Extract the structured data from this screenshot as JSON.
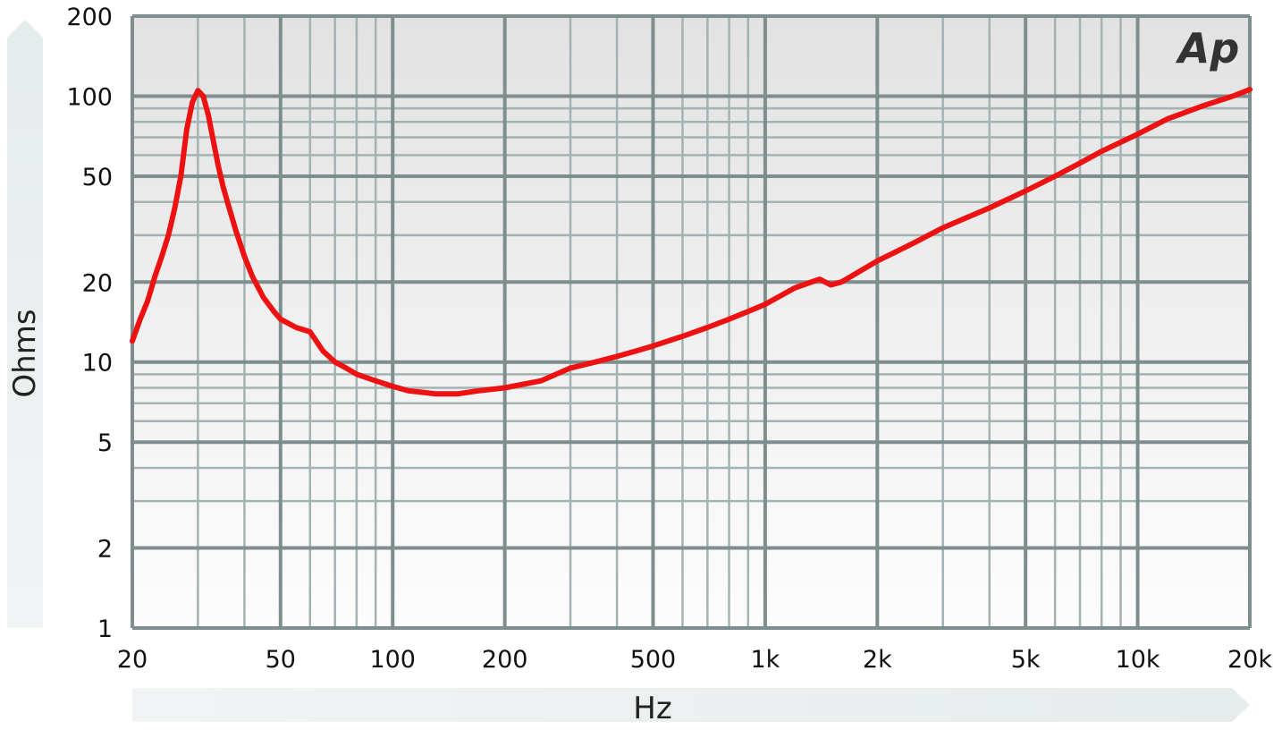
{
  "chart_data": {
    "type": "line",
    "title": "",
    "xlabel": "Hz",
    "ylabel": "Ohms",
    "x_scale": "log",
    "y_scale": "log",
    "xlim": [
      20,
      20000
    ],
    "ylim": [
      1,
      200
    ],
    "grid": true,
    "legend": "none",
    "logo_text": "Ap",
    "line_color": "#ee1111",
    "plot_bg_top": "#e2e2e2",
    "plot_bg_bottom": "#fdfdfd",
    "grid_major_color": "#7e8e8e",
    "grid_minor_color": "#a3b3b3",
    "x_ticks": [
      {
        "value": 20,
        "label": "20"
      },
      {
        "value": 50,
        "label": "50"
      },
      {
        "value": 100,
        "label": "100"
      },
      {
        "value": 200,
        "label": "200"
      },
      {
        "value": 500,
        "label": "500"
      },
      {
        "value": 1000,
        "label": "1k"
      },
      {
        "value": 2000,
        "label": "2k"
      },
      {
        "value": 5000,
        "label": "5k"
      },
      {
        "value": 10000,
        "label": "10k"
      },
      {
        "value": 20000,
        "label": "20k"
      }
    ],
    "y_ticks": [
      {
        "value": 1,
        "label": "1"
      },
      {
        "value": 2,
        "label": "2"
      },
      {
        "value": 5,
        "label": "5"
      },
      {
        "value": 10,
        "label": "10"
      },
      {
        "value": 20,
        "label": "20"
      },
      {
        "value": 50,
        "label": "50"
      },
      {
        "value": 100,
        "label": "100"
      },
      {
        "value": 200,
        "label": "200"
      }
    ],
    "series": [
      {
        "x": [
          20,
          21,
          22,
          23,
          24,
          25,
          26,
          27,
          28,
          29,
          30,
          31,
          32,
          33,
          34,
          35,
          36,
          38,
          40,
          42,
          45,
          48,
          50,
          55,
          60,
          65,
          70,
          75,
          80,
          90,
          100,
          110,
          120,
          130,
          150,
          170,
          200,
          250,
          300,
          350,
          400,
          450,
          500,
          600,
          700,
          800,
          900,
          1000,
          1200,
          1400,
          1500,
          1600,
          1700,
          2000,
          2500,
          3000,
          4000,
          5000,
          6000,
          7000,
          8000,
          10000,
          12000,
          15000,
          18000,
          20000
        ],
        "y": [
          12,
          14.5,
          17,
          21,
          25,
          30,
          38,
          50,
          75,
          95,
          105,
          100,
          85,
          68,
          55,
          46,
          40,
          31,
          25,
          21,
          17.5,
          15.5,
          14.5,
          13.5,
          13,
          11,
          10,
          9.5,
          9,
          8.5,
          8.1,
          7.8,
          7.7,
          7.6,
          7.6,
          7.8,
          8.0,
          8.5,
          9.5,
          10,
          10.5,
          11,
          11.5,
          12.5,
          13.5,
          14.5,
          15.5,
          16.5,
          19,
          20.5,
          19.5,
          20,
          21,
          24,
          28,
          32,
          38,
          44,
          50,
          56,
          62,
          72,
          82,
          92,
          100,
          106
        ]
      }
    ]
  }
}
